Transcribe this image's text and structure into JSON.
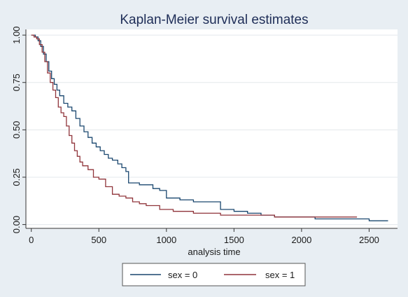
{
  "chart_data": {
    "type": "line",
    "step": true,
    "title": "Kaplan-Meier survival estimates",
    "xlabel": "analysis time",
    "ylabel": "",
    "xlim": [
      -40,
      2710
    ],
    "ylim": [
      -0.02,
      1.03
    ],
    "x_ticks": [
      0,
      500,
      1000,
      1500,
      2000,
      2500
    ],
    "y_ticks": [
      0.0,
      0.25,
      0.5,
      0.75,
      1.0
    ],
    "x_tick_labels": [
      "0",
      "500",
      "1000",
      "1500",
      "2000",
      "2500"
    ],
    "y_tick_labels": [
      "0.00",
      "0.25",
      "0.50",
      "0.75",
      "1.00"
    ],
    "grid": "horizontal",
    "legend_position": "bottom",
    "series": [
      {
        "name": "sex = 0",
        "color": "#1a476f",
        "points": [
          [
            0,
            1.0
          ],
          [
            30,
            0.99
          ],
          [
            50,
            0.97
          ],
          [
            70,
            0.94
          ],
          [
            90,
            0.9
          ],
          [
            110,
            0.86
          ],
          [
            130,
            0.81
          ],
          [
            150,
            0.77
          ],
          [
            170,
            0.74
          ],
          [
            190,
            0.71
          ],
          [
            210,
            0.68
          ],
          [
            240,
            0.64
          ],
          [
            270,
            0.62
          ],
          [
            300,
            0.6
          ],
          [
            330,
            0.56
          ],
          [
            360,
            0.52
          ],
          [
            390,
            0.49
          ],
          [
            420,
            0.46
          ],
          [
            450,
            0.43
          ],
          [
            480,
            0.41
          ],
          [
            510,
            0.39
          ],
          [
            540,
            0.37
          ],
          [
            570,
            0.35
          ],
          [
            600,
            0.34
          ],
          [
            640,
            0.32
          ],
          [
            670,
            0.3
          ],
          [
            700,
            0.28
          ],
          [
            720,
            0.22
          ],
          [
            800,
            0.21
          ],
          [
            900,
            0.19
          ],
          [
            950,
            0.18
          ],
          [
            1000,
            0.14
          ],
          [
            1100,
            0.13
          ],
          [
            1200,
            0.12
          ],
          [
            1400,
            0.08
          ],
          [
            1500,
            0.07
          ],
          [
            1600,
            0.06
          ],
          [
            1700,
            0.05
          ],
          [
            1800,
            0.04
          ],
          [
            2100,
            0.03
          ],
          [
            2500,
            0.02
          ],
          [
            2640,
            0.02
          ]
        ]
      },
      {
        "name": "sex = 1",
        "color": "#90353b",
        "points": [
          [
            0,
            1.0
          ],
          [
            20,
            0.99
          ],
          [
            40,
            0.98
          ],
          [
            60,
            0.95
          ],
          [
            80,
            0.91
          ],
          [
            100,
            0.86
          ],
          [
            120,
            0.8
          ],
          [
            140,
            0.75
          ],
          [
            160,
            0.71
          ],
          [
            180,
            0.67
          ],
          [
            200,
            0.62
          ],
          [
            220,
            0.59
          ],
          [
            240,
            0.57
          ],
          [
            260,
            0.52
          ],
          [
            280,
            0.47
          ],
          [
            300,
            0.43
          ],
          [
            320,
            0.39
          ],
          [
            340,
            0.36
          ],
          [
            360,
            0.33
          ],
          [
            380,
            0.31
          ],
          [
            420,
            0.29
          ],
          [
            460,
            0.25
          ],
          [
            500,
            0.24
          ],
          [
            550,
            0.2
          ],
          [
            600,
            0.16
          ],
          [
            650,
            0.15
          ],
          [
            700,
            0.14
          ],
          [
            750,
            0.12
          ],
          [
            800,
            0.11
          ],
          [
            850,
            0.1
          ],
          [
            950,
            0.08
          ],
          [
            1050,
            0.07
          ],
          [
            1200,
            0.06
          ],
          [
            1400,
            0.05
          ],
          [
            1800,
            0.04
          ],
          [
            2410,
            0.04
          ]
        ]
      }
    ]
  }
}
